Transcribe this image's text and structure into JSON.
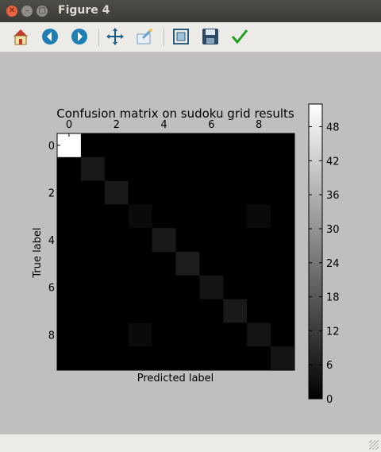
{
  "window": {
    "title": "Figure 4"
  },
  "toolbar": {
    "buttons": [
      {
        "name": "home-icon",
        "color": "#c0392b"
      },
      {
        "name": "back-icon",
        "color": "#1f7fb5"
      },
      {
        "name": "forward-icon",
        "color": "#1f7fb5"
      },
      {
        "name": "pan-icon",
        "color": "#1a5f8a"
      },
      {
        "name": "zoom-icon",
        "color": "#6fa2c8"
      },
      {
        "name": "subplots-icon",
        "color": "#2d5d7b"
      },
      {
        "name": "save-icon",
        "color": "#2c4a66"
      },
      {
        "name": "edit-axes-icon",
        "color": "#1fa01f"
      }
    ]
  },
  "chart_data": {
    "type": "heatmap",
    "title": "Confusion matrix on sudoku grid results",
    "xlabel": "Predicted label",
    "ylabel": "True label",
    "x_ticks": [
      "0",
      "2",
      "4",
      "6",
      "8"
    ],
    "y_ticks": [
      "0",
      "2",
      "4",
      "6",
      "8"
    ],
    "colormap": "gray",
    "vmin": 0,
    "vmax": 52,
    "colorbar_ticks": [
      "0",
      "6",
      "12",
      "18",
      "24",
      "30",
      "36",
      "42",
      "48"
    ],
    "matrix": [
      [
        52,
        0,
        0,
        0,
        0,
        0,
        0,
        0,
        0,
        0
      ],
      [
        0,
        5,
        0,
        0,
        0,
        0,
        0,
        0,
        0,
        0
      ],
      [
        0,
        0,
        5,
        0,
        0,
        0,
        0,
        0,
        0,
        0
      ],
      [
        0,
        0,
        0,
        2,
        0,
        0,
        0,
        0,
        2,
        0
      ],
      [
        0,
        0,
        0,
        0,
        5,
        0,
        0,
        0,
        0,
        0
      ],
      [
        0,
        0,
        0,
        0,
        0,
        6,
        0,
        0,
        0,
        0
      ],
      [
        0,
        0,
        0,
        0,
        0,
        0,
        4,
        0,
        0,
        0
      ],
      [
        0,
        0,
        0,
        0,
        0,
        0,
        0,
        5,
        0,
        0
      ],
      [
        0,
        0,
        0,
        2,
        0,
        0,
        0,
        0,
        4,
        0
      ],
      [
        0,
        0,
        0,
        0,
        0,
        0,
        0,
        0,
        0,
        4
      ]
    ]
  }
}
